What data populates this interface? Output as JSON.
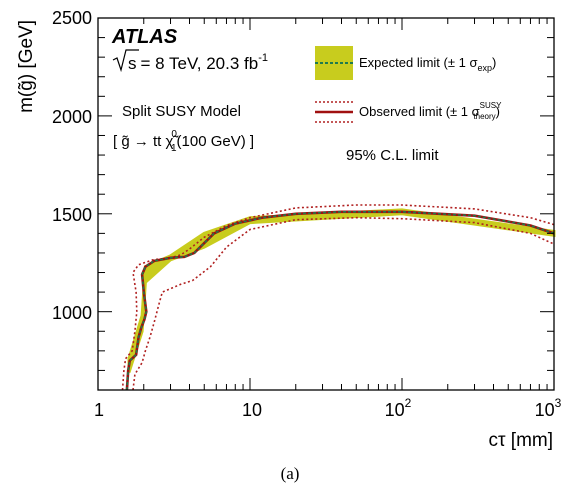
{
  "figure_label": "(a)",
  "atlas": {
    "experiment": "ATLAS",
    "sqrt_s": "s",
    "energy_lumi": "= 8 TeV, 20.3 fb",
    "lumi_exponent": "-1"
  },
  "model": {
    "name": "Split SUSY Model",
    "process": "[ g̃ → tt χ̃₁⁰(100 GeV) ]",
    "process_main": "[ g̃ → tt χ̃",
    "process_sup": "0",
    "process_sub": "1",
    "process_tail": "(100 GeV) ]"
  },
  "cl_label": "95% C.L. limit",
  "legend": {
    "expected_main": "Expected limit (± 1 σ",
    "expected_sub": "exp",
    "expected_tail": ")",
    "observed_main": "Observed limit (± 1 σ",
    "observed_sup": "SUSY",
    "observed_sub": "theory",
    "observed_tail": ")"
  },
  "axes": {
    "xlabel": "cτ [mm]",
    "ylabel": "m(g̃) [GeV]",
    "xticks": [
      {
        "value": 1,
        "base": "1",
        "exp": ""
      },
      {
        "value": 10,
        "base": "10",
        "exp": ""
      },
      {
        "value": 100,
        "base": "10",
        "exp": "2"
      },
      {
        "value": 1000,
        "base": "10",
        "exp": "3"
      }
    ],
    "yticks": [
      {
        "value": 1000,
        "label": "1000"
      },
      {
        "value": 1500,
        "label": "1500"
      },
      {
        "value": 2000,
        "label": "2000"
      },
      {
        "value": 2500,
        "label": "2500"
      }
    ]
  },
  "colors": {
    "band": "#c8cc1e",
    "expected": "#1e7a4e",
    "observed": "#a01010",
    "theory": "#b02020"
  },
  "chart_data": {
    "type": "line",
    "x_scale": "log",
    "xlim": [
      1,
      1000
    ],
    "ylim": [
      600,
      2500
    ],
    "series": [
      {
        "name": "Expected limit",
        "points": [
          [
            1.55,
            600
          ],
          [
            1.58,
            700
          ],
          [
            1.62,
            750
          ],
          [
            1.78,
            780
          ],
          [
            1.85,
            870
          ],
          [
            1.93,
            920
          ],
          [
            2.02,
            960
          ],
          [
            2.08,
            1000
          ],
          [
            2.0,
            1100
          ],
          [
            1.95,
            1190
          ],
          [
            2.05,
            1230
          ],
          [
            2.35,
            1260
          ],
          [
            3.0,
            1275
          ],
          [
            3.7,
            1280
          ],
          [
            4.3,
            1300
          ],
          [
            4.7,
            1330
          ],
          [
            5.8,
            1400
          ],
          [
            8,
            1450
          ],
          [
            12,
            1480
          ],
          [
            20,
            1500
          ],
          [
            40,
            1510
          ],
          [
            100,
            1510
          ],
          [
            300,
            1490
          ],
          [
            700,
            1440
          ],
          [
            1000,
            1400
          ]
        ],
        "band": [
          {
            "x": 1.6,
            "low": 690,
            "high": 760
          },
          {
            "x": 1.95,
            "low": 900,
            "high": 980
          },
          {
            "x": 2.05,
            "low": 1150,
            "high": 1230
          },
          {
            "x": 3.0,
            "low": 1265,
            "high": 1285
          },
          {
            "x": 5.0,
            "low": 1330,
            "high": 1400
          },
          {
            "x": 10,
            "low": 1455,
            "high": 1480
          },
          {
            "x": 100,
            "low": 1500,
            "high": 1520
          },
          {
            "x": 1000,
            "low": 1390,
            "high": 1410
          }
        ]
      },
      {
        "name": "Observed limit",
        "points": [
          [
            1.55,
            600
          ],
          [
            1.58,
            700
          ],
          [
            1.62,
            750
          ],
          [
            1.78,
            780
          ],
          [
            1.85,
            870
          ],
          [
            1.93,
            920
          ],
          [
            2.02,
            960
          ],
          [
            2.08,
            1000
          ],
          [
            2.0,
            1100
          ],
          [
            1.95,
            1190
          ],
          [
            2.05,
            1230
          ],
          [
            2.35,
            1260
          ],
          [
            3.0,
            1275
          ],
          [
            3.7,
            1280
          ],
          [
            4.3,
            1300
          ],
          [
            4.7,
            1330
          ],
          [
            5.8,
            1400
          ],
          [
            8,
            1450
          ],
          [
            12,
            1480
          ],
          [
            20,
            1500
          ],
          [
            40,
            1510
          ],
          [
            100,
            1510
          ],
          [
            300,
            1490
          ],
          [
            700,
            1440
          ],
          [
            1000,
            1400
          ]
        ],
        "theory_up": [
          [
            1.45,
            600
          ],
          [
            1.48,
            700
          ],
          [
            1.52,
            760
          ],
          [
            1.68,
            800
          ],
          [
            1.75,
            900
          ],
          [
            1.8,
            1000
          ],
          [
            1.78,
            1100
          ],
          [
            1.7,
            1200
          ],
          [
            1.85,
            1240
          ],
          [
            2.3,
            1265
          ],
          [
            3.0,
            1275
          ],
          [
            3.5,
            1290
          ],
          [
            4.0,
            1320
          ],
          [
            5.0,
            1380
          ],
          [
            7,
            1440
          ],
          [
            10,
            1480
          ],
          [
            20,
            1530
          ],
          [
            50,
            1545
          ],
          [
            100,
            1545
          ],
          [
            300,
            1525
          ],
          [
            700,
            1480
          ],
          [
            1000,
            1445
          ]
        ],
        "theory_down": [
          [
            1.7,
            600
          ],
          [
            1.75,
            680
          ],
          [
            1.95,
            740
          ],
          [
            2.05,
            800
          ],
          [
            2.2,
            870
          ],
          [
            2.35,
            950
          ],
          [
            2.5,
            1030
          ],
          [
            2.65,
            1100
          ],
          [
            3.5,
            1140
          ],
          [
            4.2,
            1160
          ],
          [
            5.5,
            1230
          ],
          [
            7,
            1330
          ],
          [
            10,
            1420
          ],
          [
            20,
            1470
          ],
          [
            50,
            1480
          ],
          [
            100,
            1475
          ],
          [
            300,
            1455
          ],
          [
            700,
            1400
          ],
          [
            1000,
            1345
          ]
        ]
      }
    ]
  }
}
